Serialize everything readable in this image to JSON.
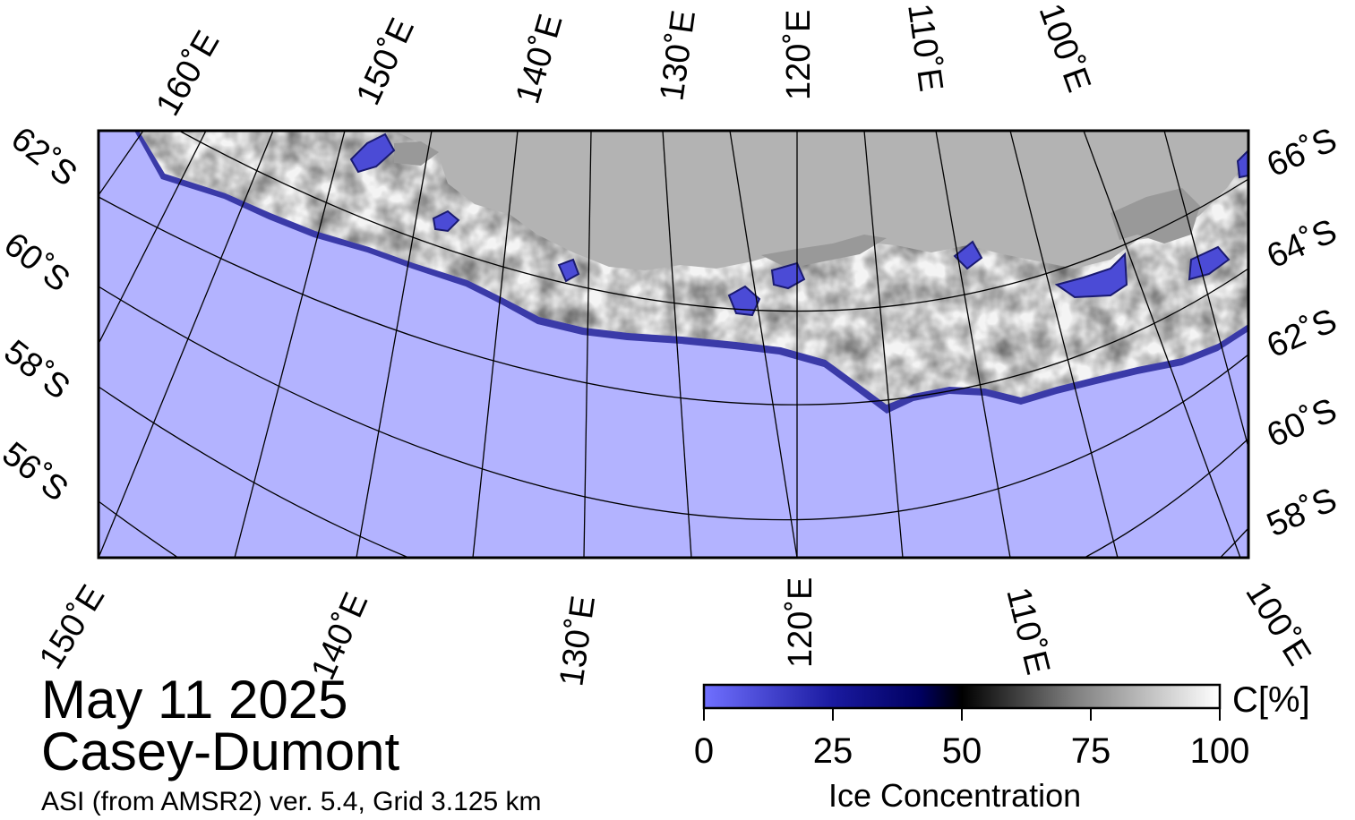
{
  "map": {
    "date": "May 11 2025",
    "region": "Casey-Dumont",
    "product": "ASI (from AMSR2) ver. 5.4,  Grid 3.125 km",
    "colors": {
      "ocean": "#b3b3ff",
      "land": "#b3b3b3",
      "ice_shelf": "#999999",
      "ice_high": "#ffffff",
      "frame": "#000000"
    },
    "graticule": {
      "top_lon_labels": [
        "160˚E",
        "150˚E",
        "140˚E",
        "130˚E",
        "120˚E",
        "110˚E",
        "100˚E"
      ],
      "bottom_lon_labels": [
        "150˚E",
        "140˚E",
        "130˚E",
        "120˚E",
        "110˚E",
        "100˚E"
      ],
      "left_lat_labels": [
        "62˚S",
        "60˚S",
        "58˚S",
        "56˚S"
      ],
      "right_lat_labels": [
        "66˚S",
        "64˚S",
        "62˚S",
        "60˚S",
        "58˚S"
      ]
    },
    "colorbar": {
      "title": "Ice Concentration",
      "unit": "C[%]",
      "ticks": [
        "0",
        "25",
        "50",
        "75",
        "100"
      ],
      "stops": [
        "#7070ff",
        "#1a1aa0",
        "#000060",
        "#000000",
        "#808080",
        "#ffffff"
      ]
    }
  }
}
